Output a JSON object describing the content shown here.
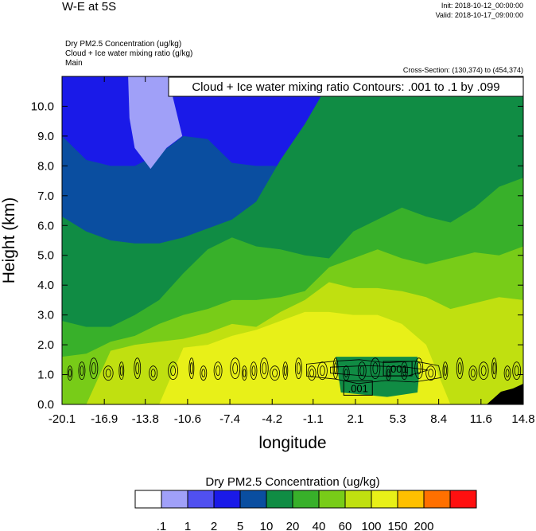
{
  "header": {
    "title": "W-E at 5S",
    "init": "Init: 2018-10-12_00:00:00",
    "valid": "Valid: 2018-10-17_09:00:00",
    "var1": "Dry PM2.5 Concentration   (ug/kg)",
    "var2": "Cloud + Ice water mixing ratio   (g/kg)",
    "var3": "Main",
    "cross_section": "Cross-Section: (130,374) to (454,374)"
  },
  "chart_data": {
    "type": "heatmap",
    "xlabel": "longitude",
    "ylabel": "Height (km)",
    "xlim": [
      -20.1,
      14.8
    ],
    "ylim": [
      0.0,
      11.0
    ],
    "x_ticks": [
      "-20.1",
      "-16.9",
      "-13.8",
      "-10.6",
      "-7.4",
      "-4.2",
      "-1.1",
      "2.1",
      "5.3",
      "8.4",
      "11.6",
      "14.8"
    ],
    "y_ticks": [
      "0.0",
      "1.0",
      "2.0",
      "3.0",
      "4.0",
      "5.0",
      "6.0",
      "7.0",
      "8.0",
      "9.0",
      "10.0"
    ],
    "contour_title": "Cloud + Ice water mixing ratio Contours: .001 to .1 by .099",
    "contour_labels": [
      {
        "text": ".001",
        "x": 5.3,
        "y": 1.2
      },
      {
        "text": ".001",
        "x": 2.3,
        "y": 0.55
      }
    ],
    "colorbar": {
      "title": "Dry PM2.5 Concentration  (ug/kg)",
      "labels": [
        ".1",
        "1",
        "2",
        "5",
        "10",
        "20",
        "40",
        "60",
        "100",
        "150",
        "200"
      ],
      "colors": [
        "#ffffff",
        "#a0a0f8",
        "#5050f0",
        "#1a1ae8",
        "#0a4ea0",
        "#108c44",
        "#38b02a",
        "#78cc18",
        "#c0e010",
        "#e8f018",
        "#ffc000",
        "#ff7000",
        "#ff1010"
      ]
    },
    "layers": [
      {
        "level": "5",
        "color": "#1a1ae8",
        "top": [
          10.8,
          10.8,
          10.8,
          10.8,
          10.8,
          10.8,
          10.8,
          10.8,
          10.8,
          10.8,
          10.8,
          10.8,
          10.8,
          10.8,
          10.8,
          10.8,
          10.8,
          10.8,
          10.8,
          10.8
        ]
      },
      {
        "level": "10",
        "color": "#0a4ea0",
        "top": [
          9.0,
          8.2,
          8.0,
          8.0,
          8.4,
          9.0,
          8.9,
          8.1,
          8.0,
          8.0,
          8.1,
          8.0,
          8.1,
          8.3,
          8.5,
          8.6,
          8.7,
          8.9,
          9.0,
          9.1
        ]
      },
      {
        "level": "20",
        "color": "#108c44",
        "top": [
          6.3,
          5.8,
          5.5,
          5.4,
          5.4,
          5.6,
          5.9,
          6.2,
          6.8,
          8.2,
          9.4,
          10.8,
          10.8,
          10.8,
          10.8,
          10.8,
          10.8,
          10.8,
          10.8,
          10.8
        ]
      },
      {
        "level": "40",
        "color": "#38b02a",
        "top": [
          2.8,
          2.6,
          2.6,
          3.0,
          3.5,
          4.4,
          5.2,
          5.6,
          5.3,
          5.2,
          5.0,
          4.9,
          5.8,
          6.2,
          6.6,
          6.3,
          6.1,
          6.6,
          7.3,
          7.6
        ]
      },
      {
        "level": "60",
        "color": "#78cc18",
        "top": [
          1.6,
          1.7,
          2.1,
          2.3,
          2.7,
          3.0,
          3.2,
          3.5,
          3.5,
          3.6,
          3.8,
          4.6,
          4.9,
          5.2,
          4.9,
          4.7,
          4.9,
          5.1,
          5.0,
          5.3
        ]
      },
      {
        "level": "100",
        "color": "#c0e010",
        "top": [
          0.0,
          0.0,
          1.8,
          2.0,
          2.1,
          2.2,
          2.4,
          2.7,
          2.6,
          3.1,
          3.5,
          4.1,
          3.9,
          3.9,
          3.8,
          3.6,
          3.2,
          3.4,
          3.6,
          3.5
        ]
      },
      {
        "level": "150",
        "color": "#e8f018",
        "top": [
          0.0,
          0.0,
          0.0,
          0.0,
          0.0,
          1.9,
          2.0,
          2.3,
          2.5,
          2.8,
          3.1,
          3.1,
          3.0,
          3.0,
          2.7,
          2.0,
          0.0,
          0.0,
          0.0,
          0.0
        ]
      }
    ],
    "patches": [
      {
        "level": "2",
        "color": "#a0a0f8",
        "points": [
          [
            -15.1,
            11.0
          ],
          [
            -12.1,
            11.0
          ],
          [
            -11.0,
            9.0
          ],
          [
            -12.2,
            8.6
          ],
          [
            -13.4,
            7.9
          ],
          [
            -14.6,
            8.6
          ],
          [
            -15.0,
            9.6
          ]
        ]
      },
      {
        "level": "20",
        "color": "#108c44",
        "points": [
          [
            0.6,
            1.6
          ],
          [
            6.8,
            1.6
          ],
          [
            6.9,
            0.9
          ],
          [
            6.8,
            0.4
          ],
          [
            4.5,
            0.25
          ],
          [
            1.0,
            0.4
          ]
        ]
      }
    ]
  }
}
